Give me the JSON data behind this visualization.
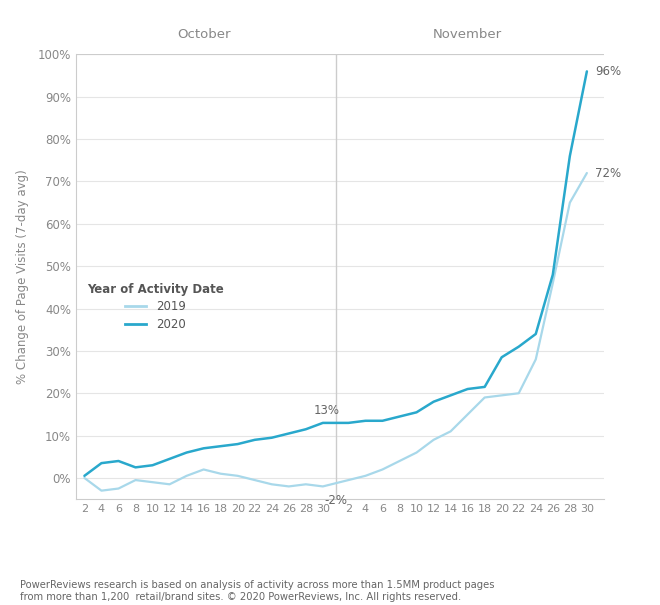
{
  "ylabel": "% Change of Page Visits (7-day avg)",
  "footnote": "PowerReviews research is based on analysis of activity across more than 1.5MM product pages\nfrom more than 1,200  retail/brand sites. © 2020 PowerReviews, Inc. All rights reserved.",
  "oct_label": "October",
  "nov_label": "November",
  "legend_title": "Year of Activity Date",
  "legend_2019": "2019",
  "legend_2020": "2020",
  "color_2019": "#a8d8ea",
  "color_2020": "#29a8cc",
  "ylim": [
    -5,
    100
  ],
  "yticks": [
    0,
    10,
    20,
    30,
    40,
    50,
    60,
    70,
    80,
    90,
    100
  ],
  "background_color": "#ffffff",
  "grid_color": "#e5e5e5",
  "oct_days": [
    2,
    4,
    6,
    8,
    10,
    12,
    14,
    16,
    18,
    20,
    22,
    24,
    26,
    28,
    30
  ],
  "nov_days": [
    2,
    4,
    6,
    8,
    10,
    12,
    14,
    16,
    18,
    20,
    22,
    24,
    26,
    28,
    30
  ],
  "oct_2020": [
    0.5,
    3.5,
    4.0,
    2.5,
    3.0,
    4.5,
    6.0,
    7.0,
    7.5,
    8.0,
    9.0,
    9.5,
    10.5,
    11.5,
    13.0
  ],
  "oct_2019": [
    0.0,
    -3.0,
    -2.5,
    -0.5,
    -1.0,
    -1.5,
    0.5,
    2.0,
    1.0,
    0.5,
    -0.5,
    -1.5,
    -2.0,
    -1.5,
    -2.0
  ],
  "nov_2020": [
    13.0,
    13.5,
    13.5,
    14.5,
    15.5,
    18.0,
    19.5,
    21.0,
    21.5,
    28.5,
    31.0,
    34.0,
    48.0,
    76.0,
    96.0
  ],
  "nov_2019": [
    -0.5,
    0.5,
    2.0,
    4.0,
    6.0,
    9.0,
    11.0,
    15.0,
    19.0,
    19.5,
    20.0,
    28.0,
    46.0,
    65.0,
    72.0
  ]
}
